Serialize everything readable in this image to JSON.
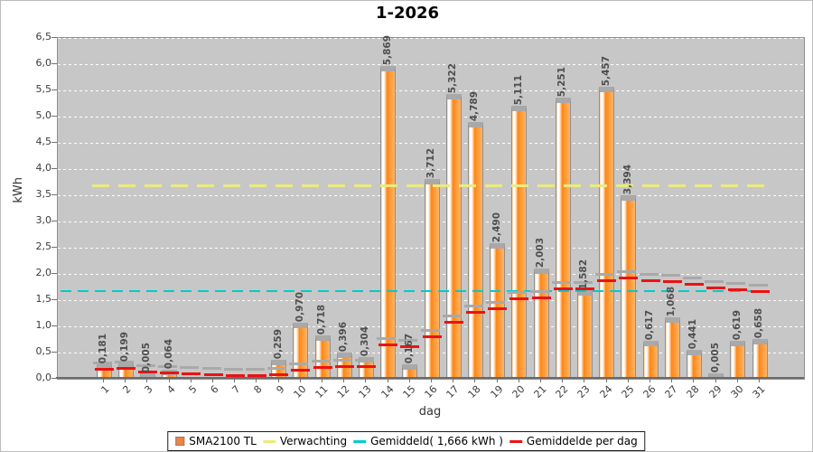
{
  "title": "1-2026",
  "chart_data": {
    "type": "bar",
    "title": "1-2026",
    "xlabel": "dag",
    "ylabel": "kWh",
    "ylim": [
      0,
      6.5
    ],
    "ytick_step": 0.5,
    "ytick_labels": [
      "0,0",
      "0,5",
      "1,0",
      "1,5",
      "2,0",
      "2,5",
      "3,0",
      "3,5",
      "4,0",
      "4,5",
      "5,0",
      "5,5",
      "6,0",
      "6,5"
    ],
    "grid": true,
    "legend_position": "bottom",
    "plot_bg": "#c7c7c7",
    "categories": [
      "1",
      "2",
      "3",
      "4",
      "5",
      "6",
      "7",
      "8",
      "9",
      "10",
      "11",
      "12",
      "13",
      "14",
      "15",
      "16",
      "17",
      "18",
      "19",
      "20",
      "21",
      "22",
      "23",
      "24",
      "25",
      "26",
      "27",
      "28",
      "29",
      "30",
      "31"
    ],
    "series": [
      {
        "name": "SMA2100 TL",
        "type": "bar",
        "color": "#f08440",
        "values": [
          0.181,
          0.199,
          0.005,
          0.064,
          0,
          0,
          0,
          0,
          0.259,
          0.97,
          0.718,
          0.396,
          0.304,
          5.869,
          0.167,
          3.712,
          5.322,
          4.789,
          2.49,
          5.111,
          2.003,
          5.251,
          1.582,
          5.457,
          3.394,
          0.617,
          1.068,
          0.441,
          0.005,
          0.619,
          0.658
        ],
        "value_labels": [
          "0,181",
          "0,199",
          "0,005",
          "0,064",
          "",
          "",
          "",
          "",
          "0,259",
          "0,970",
          "0,718",
          "0,396",
          "0,304",
          "5,869",
          "0,167",
          "3,712",
          "5,322",
          "4,789",
          "2,490",
          "5,111",
          "2,003",
          "5,251",
          "1,582",
          "5,457",
          "3,394",
          "0,617",
          "1,068",
          "0,441",
          "0,005",
          "0,619",
          "0,658"
        ]
      },
      {
        "name": "Verwachting",
        "type": "dashed_line",
        "color": "#ebeb7e",
        "value": 3.69
      },
      {
        "name": "Gemiddeld( 1,666 kWh )",
        "type": "dashed_line",
        "color": "#00cccc",
        "value": 1.666
      },
      {
        "name": "Gemiddelde per dag",
        "type": "dash_per_category",
        "color": "#ee1111",
        "values": [
          0.181,
          0.19,
          0.128,
          0.112,
          0.09,
          0.075,
          0.064,
          0.056,
          0.079,
          0.168,
          0.218,
          0.233,
          0.238,
          0.64,
          0.609,
          0.803,
          1.069,
          1.275,
          1.339,
          1.528,
          1.55,
          1.719,
          1.713,
          1.869,
          1.93,
          1.879,
          1.849,
          1.799,
          1.737,
          1.7,
          1.666
        ]
      }
    ]
  },
  "legend": {
    "items": [
      {
        "label": "SMA2100 TL",
        "swatch": "square",
        "color": "#f08440"
      },
      {
        "label": "Verwachting",
        "swatch": "dash",
        "color": "#ebeb7e"
      },
      {
        "label": "Gemiddeld( 1,666 kWh )",
        "swatch": "dash",
        "color": "#00cccc"
      },
      {
        "label": "Gemiddelde per dag",
        "swatch": "dash",
        "color": "#ee1111"
      }
    ]
  }
}
